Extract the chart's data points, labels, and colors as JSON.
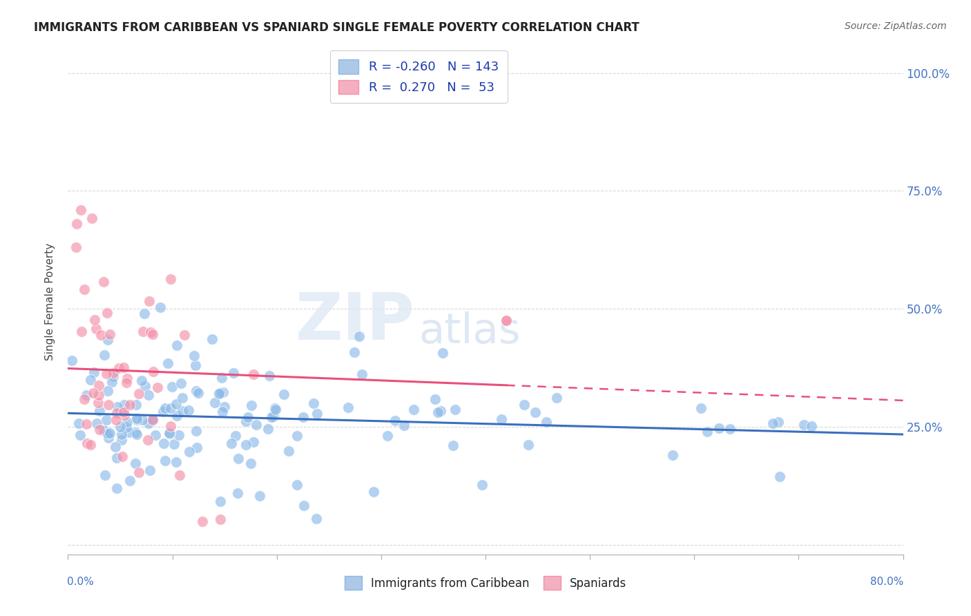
{
  "title": "IMMIGRANTS FROM CARIBBEAN VS SPANIARD SINGLE FEMALE POVERTY CORRELATION CHART",
  "source": "Source: ZipAtlas.com",
  "ylabel": "Single Female Poverty",
  "y_ticks": [
    0.0,
    0.25,
    0.5,
    0.75,
    1.0
  ],
  "y_tick_labels": [
    "",
    "25.0%",
    "50.0%",
    "75.0%",
    "100.0%"
  ],
  "x_lim": [
    0.0,
    0.8
  ],
  "y_lim": [
    -0.02,
    1.05
  ],
  "caribbean_R": -0.26,
  "caribbean_N": 143,
  "spaniard_R": 0.27,
  "spaniard_N": 53,
  "caribbean_color": "#8ab9e8",
  "spaniard_color": "#f490a8",
  "caribbean_line_color": "#3a6fbc",
  "spaniard_line_color": "#e8507a",
  "watermark_zip": "ZIP",
  "watermark_atlas": "atlas",
  "background_color": "#ffffff",
  "grid_color": "#d8d8d8",
  "legend_label_color": "#1a3aaa",
  "legend_box_blue": "#aec8e8",
  "legend_box_pink": "#f4b0c0"
}
